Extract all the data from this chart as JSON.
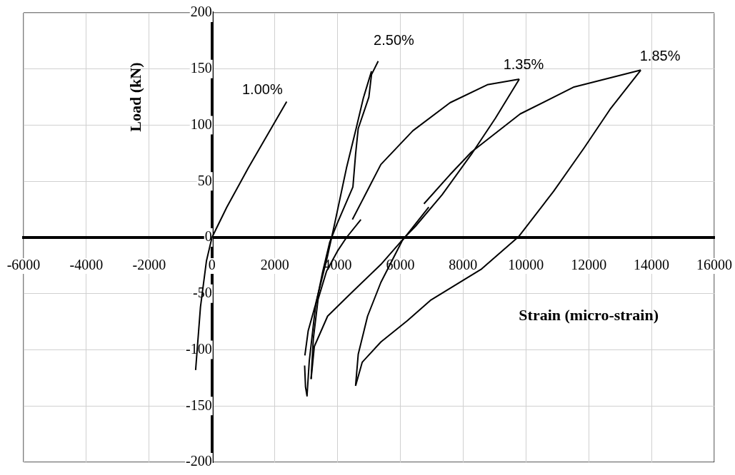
{
  "chart_data": {
    "type": "line",
    "xlabel": "Strain (micro-strain)",
    "ylabel": "Load (kN)",
    "xlim": [
      -6000,
      16000
    ],
    "xticks": [
      -6000,
      -4000,
      -2000,
      0,
      2000,
      4000,
      6000,
      8000,
      10000,
      12000,
      14000,
      16000
    ],
    "ylim": [
      -200,
      200
    ],
    "yticks": [
      -200,
      -150,
      -100,
      -50,
      0,
      50,
      100,
      150,
      200
    ],
    "grid": true,
    "series": [
      {
        "name": "1.00%",
        "color": "#000000",
        "x": [
          -520,
          -366,
          -176,
          0,
          473,
          1160,
          2380
        ],
        "values": [
          -118,
          -62,
          -21,
          0,
          27,
          62,
          121
        ]
      },
      {
        "name": "2.50%",
        "color": "#000000",
        "x": [
          2952,
          2980,
          3028,
          3100,
          3295,
          3524,
          3753,
          3982,
          4490,
          4575,
          4659,
          4998,
          5082,
          5295
        ],
        "values": [
          -114,
          -133,
          -141,
          -110,
          -62,
          -31,
          -4,
          12,
          45,
          74,
          97,
          125,
          145,
          157
        ]
      },
      {
        "color": "#000000",
        "x": [
          2960,
          3066,
          3295,
          3677,
          3906,
          4286,
          4592,
          4821,
          5082
        ],
        "values": [
          -105,
          -83,
          -60,
          -17,
          12,
          62,
          97,
          124,
          148
        ]
      },
      {
        "name": "1.35%",
        "color": "#000000",
        "x": [
          4474,
          5380,
          6398,
          7584,
          8771,
          9789
        ],
        "values": [
          16,
          65,
          95,
          120,
          136,
          141
        ]
      },
      {
        "color": "#000000",
        "x": [
          3158,
          3261,
          3684,
          4449,
          5380,
          6101,
          6483,
          7330,
          8261,
          9025,
          9789
        ],
        "values": [
          -126,
          -97,
          -70,
          -49,
          -24,
          -1,
          10,
          38,
          74,
          106,
          141
        ]
      },
      {
        "color": "#000000",
        "x": [
          3158,
          3230,
          3380,
          3650,
          4000,
          4286,
          4744
        ],
        "values": [
          -126,
          -90,
          -55,
          -30,
          -12,
          0,
          16
        ]
      },
      {
        "name": "1.85%",
        "color": "#000000",
        "x": [
          6753,
          7584,
          8263,
          9817,
          11533,
          13659
        ],
        "values": [
          30,
          56,
          76,
          110,
          134,
          149
        ]
      },
      {
        "color": "#000000",
        "x": [
          4575,
          4787,
          5380,
          6227,
          6957,
          8590,
          9776,
          10879,
          11860,
          12677,
          13659
        ],
        "values": [
          -132,
          -111,
          -93,
          -74,
          -56,
          -28,
          1,
          41,
          80,
          114,
          149
        ]
      },
      {
        "color": "#000000",
        "x": [
          4575,
          4659,
          4957,
          5380,
          6057,
          6906
        ],
        "values": [
          -132,
          -104,
          -70,
          -40,
          -3,
          27
        ]
      }
    ]
  }
}
